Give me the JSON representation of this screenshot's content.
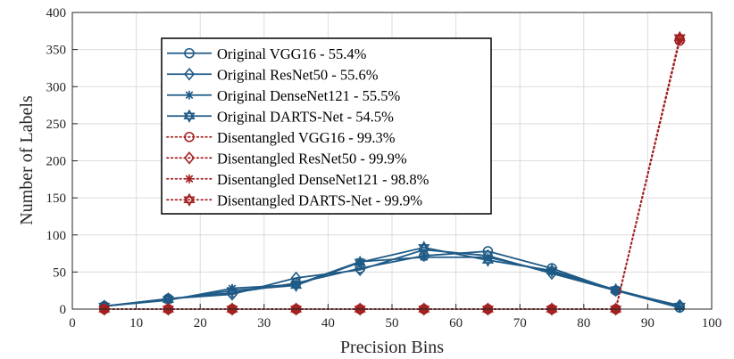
{
  "chart_data": {
    "type": "line",
    "xlabel": "Precision Bins",
    "ylabel": "Number of Labels",
    "xlim": [
      0,
      100
    ],
    "ylim": [
      0,
      400
    ],
    "xticks": [
      0,
      10,
      20,
      30,
      40,
      50,
      60,
      70,
      80,
      90,
      100
    ],
    "yticks": [
      0,
      50,
      100,
      150,
      200,
      250,
      300,
      350,
      400
    ],
    "grid": true,
    "legend_position": "top-left",
    "x": [
      5,
      15,
      25,
      35,
      45,
      55,
      65,
      75,
      85,
      95
    ],
    "series": [
      {
        "name": "Original VGG16  -  55.4%",
        "color": "#1f5a86",
        "style": "solid",
        "marker": "circle",
        "values": [
          4,
          14,
          22,
          35,
          55,
          72,
          78,
          55,
          25,
          2
        ]
      },
      {
        "name": "Original ResNet50  -  55.6%",
        "color": "#1f5a86",
        "style": "solid",
        "marker": "diamond",
        "values": [
          4,
          14,
          20,
          42,
          53,
          80,
          72,
          48,
          25,
          5
        ]
      },
      {
        "name": "Original DenseNet121  -  55.5%",
        "color": "#1f5a86",
        "style": "solid",
        "marker": "asterisk",
        "values": [
          4,
          12,
          28,
          33,
          64,
          70,
          70,
          50,
          26,
          3
        ]
      },
      {
        "name": "Original DARTS-Net  -  54.5%",
        "color": "#1f5a86",
        "style": "solid",
        "marker": "hexagram",
        "values": [
          4,
          13,
          25,
          32,
          63,
          83,
          66,
          52,
          26,
          4
        ]
      },
      {
        "name": "Disentangled VGG16  -  99.3%",
        "color": "#a32020",
        "style": "dotted",
        "marker": "circle",
        "values": [
          0,
          0,
          0,
          0,
          0,
          0,
          0,
          0,
          0,
          362
        ]
      },
      {
        "name": "Disentangled ResNet50  -  99.9%",
        "color": "#a32020",
        "style": "dotted",
        "marker": "diamond",
        "values": [
          0,
          0,
          0,
          0,
          0,
          0,
          0,
          0,
          0,
          365
        ]
      },
      {
        "name": "Disentangled DenseNet121  -  98.8%",
        "color": "#a32020",
        "style": "dotted",
        "marker": "asterisk",
        "values": [
          0,
          0,
          0,
          0,
          0,
          0,
          0,
          0,
          0,
          363
        ]
      },
      {
        "name": "Disentangled DARTS-Net  -  99.9%",
        "color": "#a32020",
        "style": "dotted",
        "marker": "hexagram",
        "values": [
          0,
          0,
          0,
          0,
          0,
          0,
          0,
          0,
          0,
          366
        ]
      }
    ]
  }
}
